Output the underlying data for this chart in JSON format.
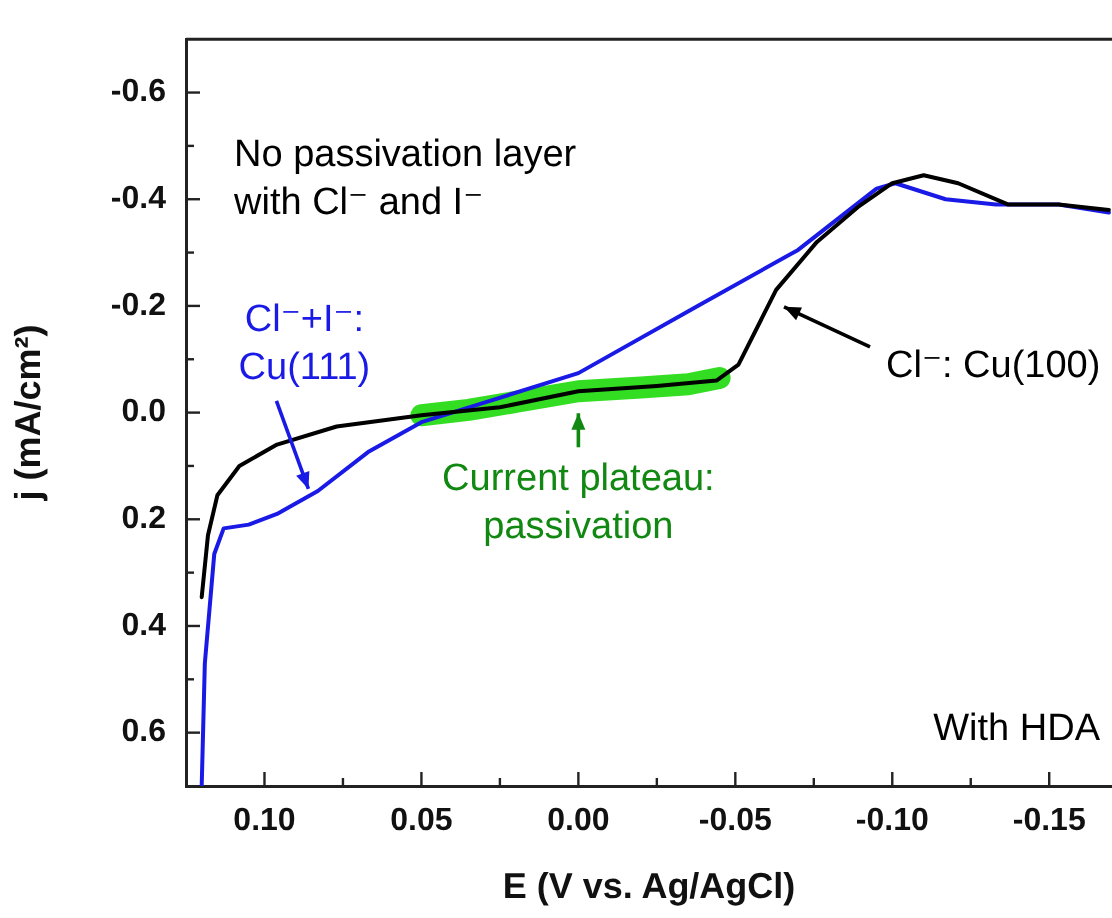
{
  "chart_data": {
    "type": "line",
    "xlabel": "E (V vs. Ag/AgCl)",
    "ylabel": "j (mA/cm²)",
    "xlim": [
      0.125,
      -0.17
    ],
    "ylim": [
      0.7,
      -0.7
    ],
    "xticks": [
      {
        "value": 0.1,
        "label": "0.10"
      },
      {
        "value": 0.075,
        "label": null
      },
      {
        "value": 0.05,
        "label": "0.05"
      },
      {
        "value": 0.025,
        "label": null
      },
      {
        "value": 0.0,
        "label": "0.00"
      },
      {
        "value": -0.025,
        "label": null
      },
      {
        "value": -0.05,
        "label": "-0.05"
      },
      {
        "value": -0.075,
        "label": null
      },
      {
        "value": -0.1,
        "label": "-0.10"
      },
      {
        "value": -0.125,
        "label": null
      },
      {
        "value": -0.15,
        "label": "-0.15"
      }
    ],
    "yticks": [
      {
        "value": -0.6,
        "label": "-0.6"
      },
      {
        "value": -0.5,
        "label": null
      },
      {
        "value": -0.4,
        "label": "-0.4"
      },
      {
        "value": -0.3,
        "label": null
      },
      {
        "value": -0.2,
        "label": "-0.2"
      },
      {
        "value": -0.1,
        "label": null
      },
      {
        "value": 0.0,
        "label": "0.0"
      },
      {
        "value": 0.1,
        "label": null
      },
      {
        "value": 0.2,
        "label": "0.2"
      },
      {
        "value": 0.3,
        "label": null
      },
      {
        "value": 0.4,
        "label": "0.4"
      },
      {
        "value": 0.5,
        "label": null
      },
      {
        "value": 0.6,
        "label": "0.6"
      }
    ],
    "grid": false,
    "legend": false,
    "marker": "none",
    "line_style": "solid",
    "series": [
      {
        "color": "#33dd22",
        "x": [
          0.05,
          0.035,
          0.02,
          0.0,
          -0.02,
          -0.035,
          -0.045
        ],
        "values": [
          0.005,
          -0.005,
          -0.02,
          -0.04,
          -0.047,
          -0.053,
          -0.065
        ]
      },
      {
        "color": "#000000",
        "x": [
          0.12,
          0.118,
          0.115,
          0.108,
          0.096,
          0.077,
          0.05,
          0.025,
          0.0,
          -0.025,
          -0.044,
          -0.051,
          -0.063,
          -0.076,
          -0.089,
          -0.1,
          -0.11,
          -0.121,
          -0.137,
          -0.153,
          -0.169
        ],
        "values": [
          0.346,
          0.23,
          0.155,
          0.1,
          0.06,
          0.026,
          0.005,
          -0.01,
          -0.04,
          -0.05,
          -0.06,
          -0.09,
          -0.23,
          -0.32,
          -0.385,
          -0.43,
          -0.445,
          -0.43,
          -0.39,
          -0.39,
          -0.38
        ]
      },
      {
        "color": "#1a1ae6",
        "x": [
          0.12,
          0.119,
          0.116,
          0.113,
          0.105,
          0.096,
          0.083,
          0.067,
          0.05,
          0.032,
          0.0,
          -0.038,
          -0.07,
          -0.095,
          -0.101,
          -0.117,
          -0.133,
          -0.153,
          -0.169
        ],
        "values": [
          0.7,
          0.47,
          0.265,
          0.217,
          0.21,
          0.19,
          0.147,
          0.074,
          0.018,
          -0.015,
          -0.074,
          -0.2,
          -0.305,
          -0.42,
          -0.43,
          -0.4,
          -0.39,
          -0.39,
          -0.375
        ]
      }
    ],
    "annotations": [
      "No passivation layer\nwith Cl⁻ and I⁻",
      {
        "text": "Cl⁻+I⁻:\nCu(111)",
        "x": 0.086,
        "y": 0.143
      },
      "Cl⁻: Cu(100)",
      {
        "text": "Current plateau:\npassivation",
        "x": 0.0,
        "y": -0.01
      },
      "With HDA"
    ]
  }
}
